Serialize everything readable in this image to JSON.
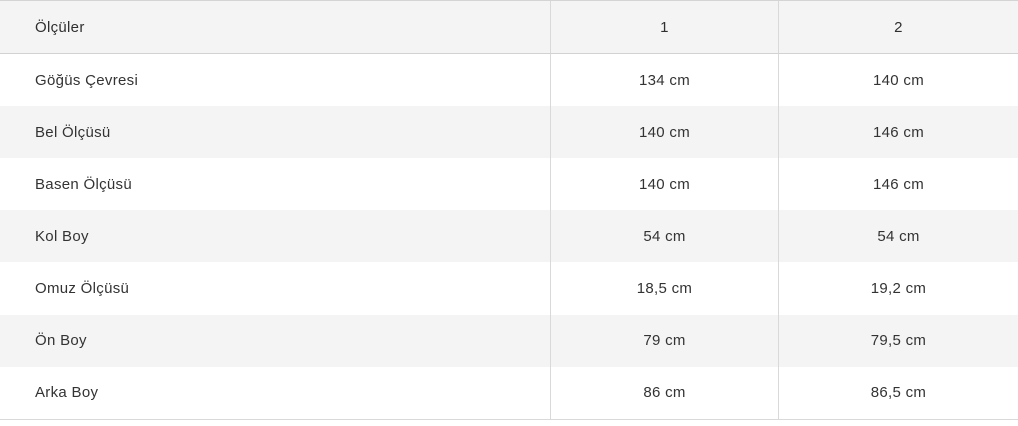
{
  "table": {
    "header": {
      "label": "Ölçüler",
      "sizes": [
        "1",
        "2"
      ]
    },
    "rows": [
      {
        "label": "Göğüs Çevresi",
        "values": [
          "134 cm",
          "140 cm"
        ]
      },
      {
        "label": "Bel Ölçüsü",
        "values": [
          "140 cm",
          "146 cm"
        ]
      },
      {
        "label": "Basen Ölçüsü",
        "values": [
          "140 cm",
          "146 cm"
        ]
      },
      {
        "label": "Kol Boy",
        "values": [
          "54 cm",
          "54 cm"
        ]
      },
      {
        "label": "Omuz Ölçüsü",
        "values": [
          "18,5 cm",
          "19,2 cm"
        ]
      },
      {
        "label": "Ön Boy",
        "values": [
          "79 cm",
          "79,5 cm"
        ]
      },
      {
        "label": "Arka Boy",
        "values": [
          "86 cm",
          "86,5 cm"
        ]
      }
    ]
  },
  "colors": {
    "header_background": "#f4f4f4",
    "shaded_row_background": "#f4f4f4",
    "row_background": "#ffffff",
    "border": "#d9d9d9",
    "text": "#333333"
  }
}
